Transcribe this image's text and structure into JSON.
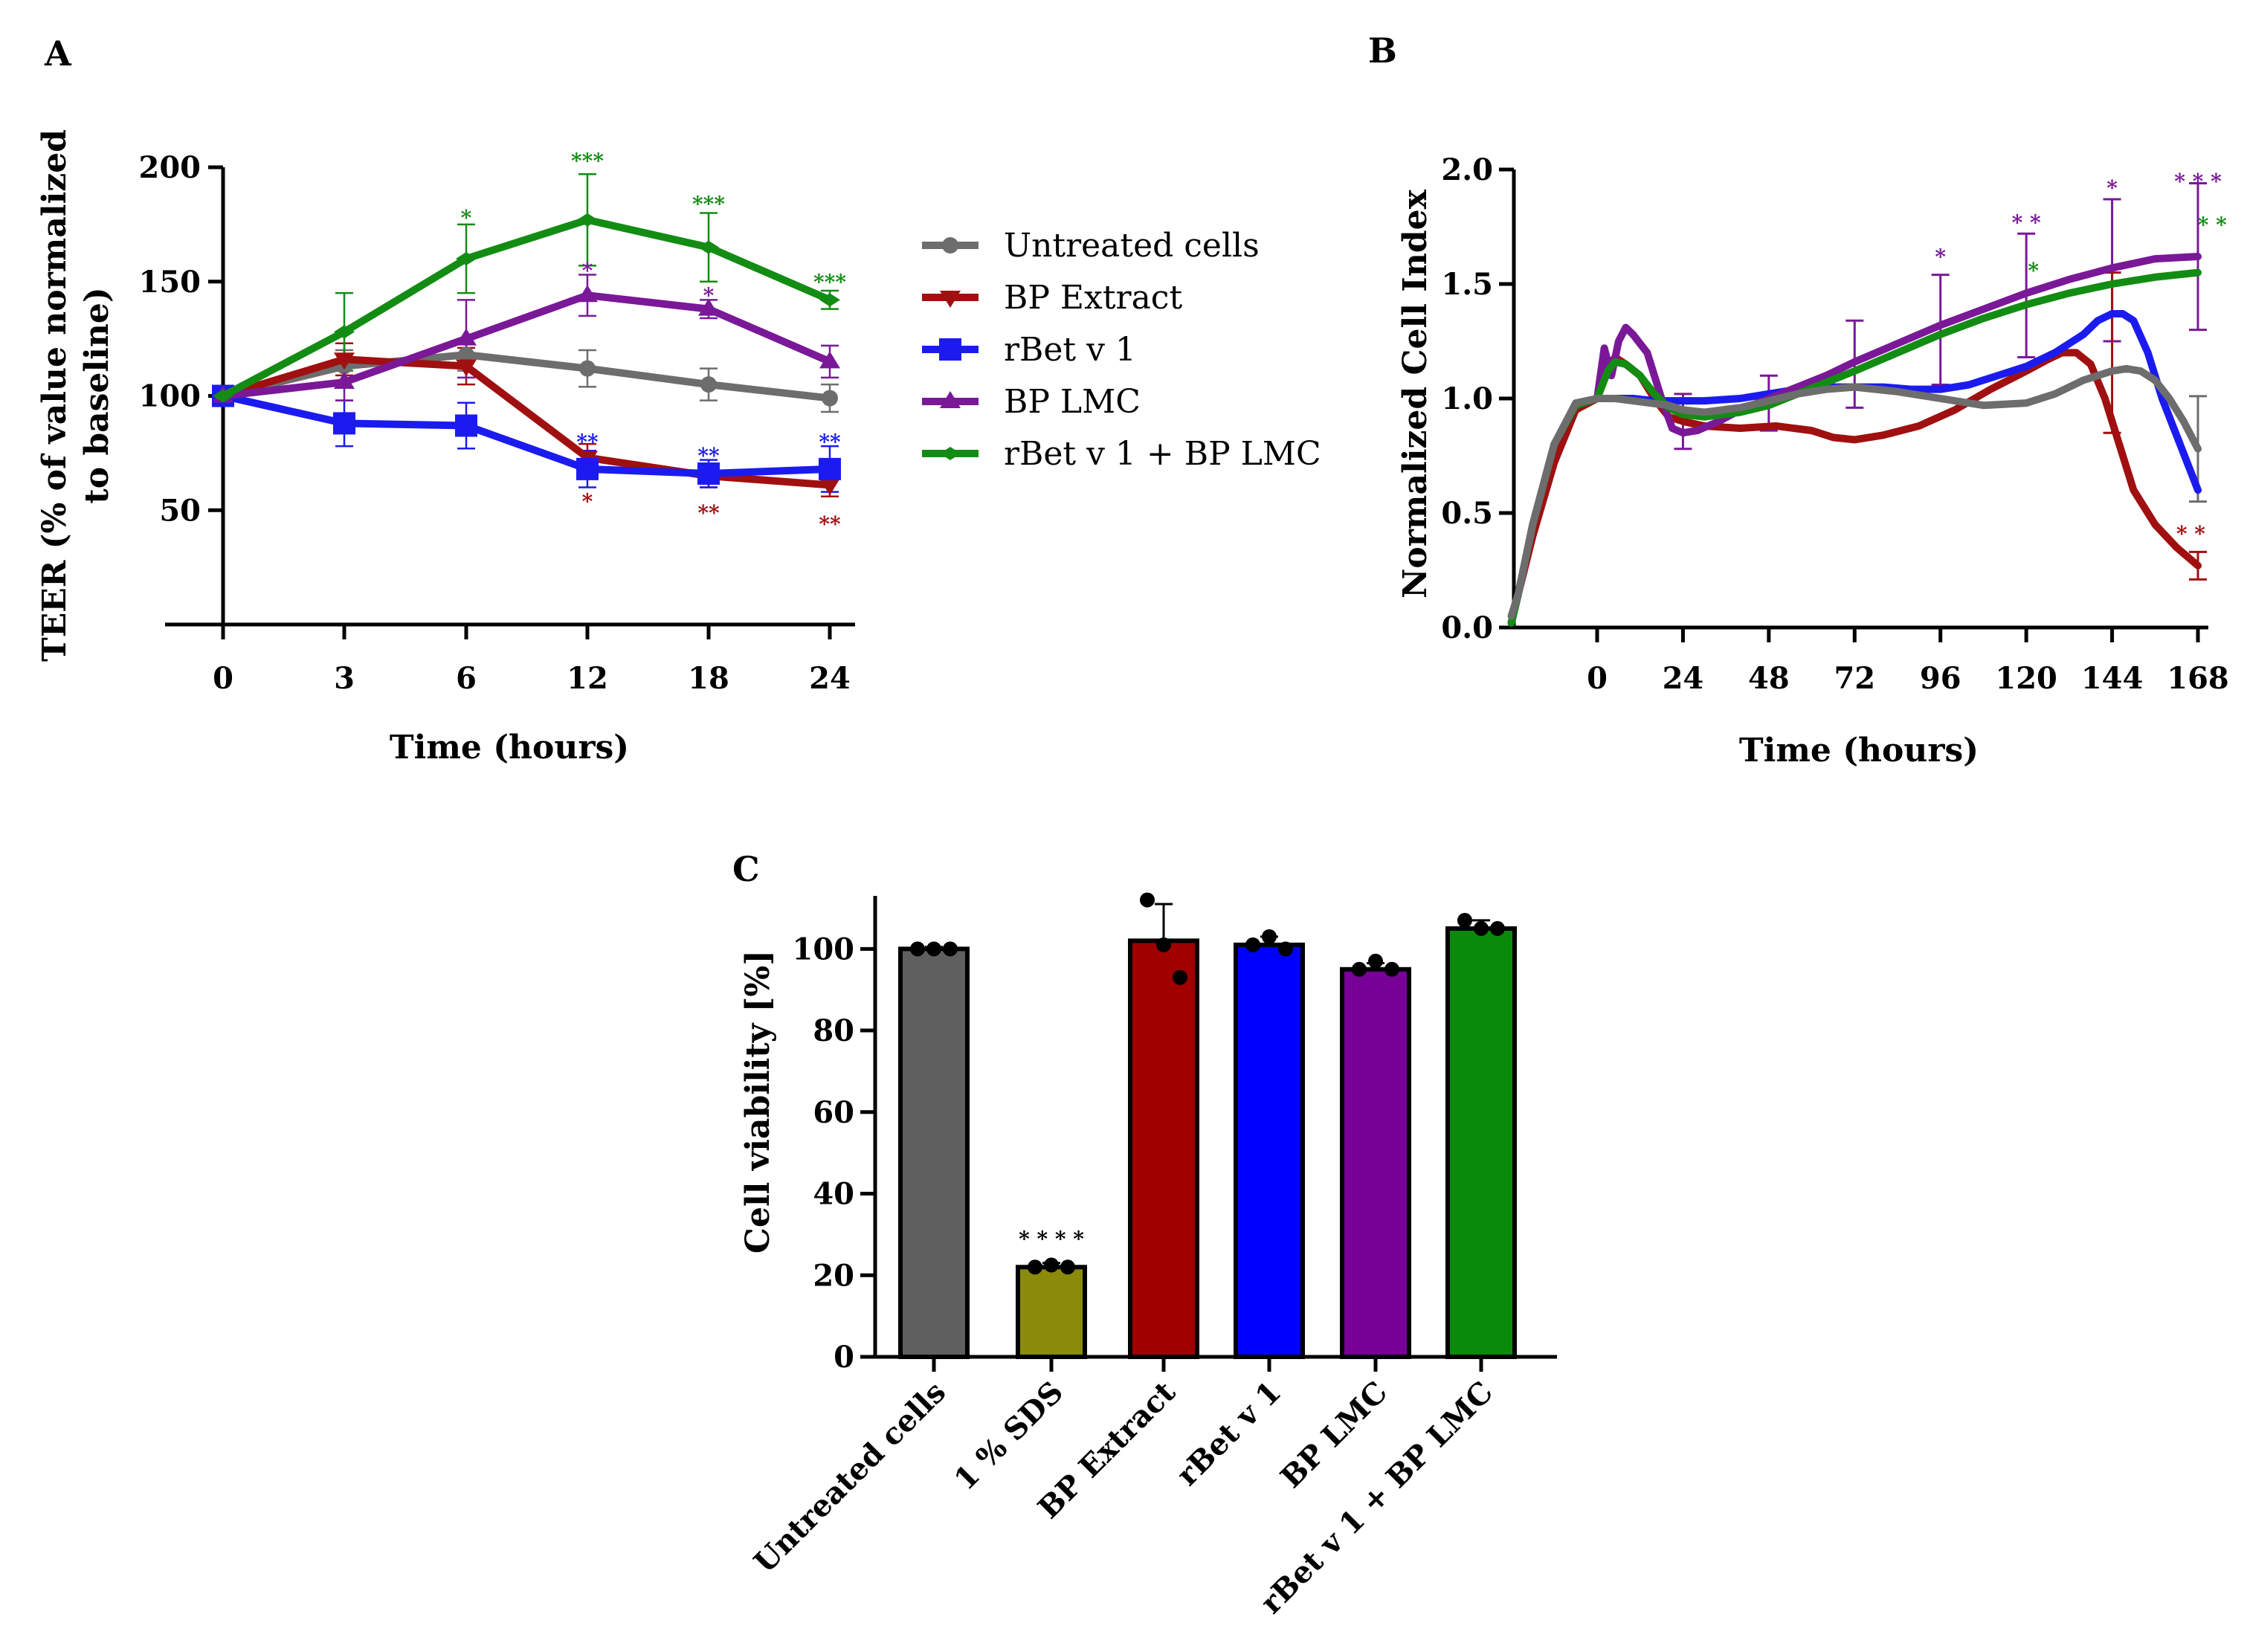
{
  "chart_data": [
    {
      "panel": "A",
      "type": "line",
      "xlabel": "Time (hours)",
      "ylabel": "TEER (% of value normalized to baseline)",
      "ylabel_lines": [
        "TEER (% of value normalized",
        "to baseline)"
      ],
      "categories": [
        "0",
        "3",
        "6",
        "12",
        "18",
        "24"
      ],
      "ylim": [
        0,
        200
      ],
      "yticks": [
        50,
        100,
        150,
        200
      ],
      "grid": false,
      "legend": "right",
      "series": [
        {
          "name": "Untreated cells",
          "color": "#6d6d6d",
          "marker": "circle",
          "values": [
            100,
            113,
            118,
            112,
            105,
            99
          ],
          "errors": [
            4,
            7,
            7,
            8,
            7,
            6
          ]
        },
        {
          "name": "BP Extract",
          "color": "#a01010",
          "marker": "triangle-down",
          "values": [
            100,
            116,
            113,
            73,
            65,
            61
          ],
          "errors": [
            4,
            7,
            8,
            6,
            5,
            5
          ]
        },
        {
          "name": "rBet v 1",
          "color": "#1b1bf0",
          "marker": "square",
          "values": [
            100,
            88,
            87,
            68,
            66,
            68
          ],
          "errors": [
            4,
            10,
            10,
            8,
            6,
            10
          ]
        },
        {
          "name": "BP LMC",
          "color": "#7a1898",
          "marker": "triangle-up",
          "values": [
            100,
            106,
            125,
            144,
            138,
            115
          ],
          "errors": [
            4,
            8,
            17,
            9,
            4,
            7
          ]
        },
        {
          "name": "rBet v 1 + BP LMC",
          "color": "#138c13",
          "marker": "diamond",
          "values": [
            100,
            128,
            160,
            177,
            165,
            142
          ],
          "errors": [
            4,
            17,
            15,
            20,
            15,
            4
          ]
        }
      ],
      "annotations": [
        {
          "text": "*",
          "x": "6",
          "y": 178,
          "series": "rBet v 1 + BP LMC"
        },
        {
          "text": "***",
          "x": "12",
          "y": 203,
          "series": "rBet v 1 + BP LMC"
        },
        {
          "text": "***",
          "x": "18",
          "y": 184,
          "series": "rBet v 1 + BP LMC"
        },
        {
          "text": "***",
          "x": "24",
          "y": 150,
          "series": "rBet v 1 + BP LMC"
        },
        {
          "text": "*",
          "x": "12",
          "y": 155,
          "series": "BP LMC"
        },
        {
          "text": "*",
          "x": "18",
          "y": 144,
          "series": "BP LMC"
        },
        {
          "text": "**",
          "x": "12",
          "y": 80,
          "series": "rBet v 1"
        },
        {
          "text": "**",
          "x": "18",
          "y": 74,
          "series": "rBet v 1"
        },
        {
          "text": "**",
          "x": "24",
          "y": 80,
          "series": "rBet v 1"
        },
        {
          "text": "*",
          "x": "12",
          "y": 54,
          "series": "BP Extract"
        },
        {
          "text": "**",
          "x": "18",
          "y": 49,
          "series": "BP Extract"
        },
        {
          "text": "**",
          "x": "24",
          "y": 44,
          "series": "BP Extract"
        }
      ]
    },
    {
      "panel": "B",
      "type": "line",
      "xlabel": "Time (hours)",
      "ylabel": "Normalized Cell Index",
      "xticks": [
        0,
        24,
        48,
        72,
        96,
        120,
        144,
        168
      ],
      "xlim": [
        -24,
        170
      ],
      "ylim": [
        0,
        2
      ],
      "yticks": [
        0.0,
        0.5,
        1.0,
        1.5,
        2.0
      ],
      "ytick_labels": [
        "0.0",
        "0.5",
        "1.0",
        "1.5",
        "2.0"
      ],
      "grid": false,
      "series": [
        {
          "name": "BP Extract",
          "color": "#a01010",
          "x": [
            -24,
            -22,
            -18,
            -12,
            -6,
            0,
            2,
            5,
            8,
            12,
            16,
            20,
            24,
            30,
            40,
            50,
            60,
            66,
            72,
            80,
            90,
            100,
            110,
            120,
            126,
            130,
            134,
            138,
            142,
            146,
            150,
            156,
            162,
            168
          ],
          "y": [
            0.02,
            0.15,
            0.4,
            0.72,
            0.95,
            1.0,
            1.1,
            1.18,
            1.15,
            1.1,
            1.0,
            0.92,
            0.9,
            0.88,
            0.87,
            0.88,
            0.86,
            0.83,
            0.82,
            0.84,
            0.88,
            0.95,
            1.04,
            1.12,
            1.17,
            1.2,
            1.2,
            1.15,
            1.0,
            0.8,
            0.6,
            0.45,
            0.35,
            0.27
          ]
        },
        {
          "name": "rBet v 1",
          "color": "#1b1bf0",
          "x": [
            -24,
            -22,
            -18,
            -12,
            -6,
            0,
            5,
            10,
            16,
            20,
            24,
            30,
            40,
            48,
            56,
            64,
            72,
            80,
            88,
            96,
            104,
            112,
            120,
            128,
            136,
            140,
            144,
            147,
            150,
            154,
            158,
            163,
            168
          ],
          "y": [
            0.02,
            0.15,
            0.45,
            0.8,
            0.97,
            1.0,
            1.0,
            1.0,
            0.99,
            0.99,
            0.99,
            0.99,
            1.0,
            1.02,
            1.04,
            1.05,
            1.05,
            1.05,
            1.04,
            1.04,
            1.06,
            1.1,
            1.14,
            1.2,
            1.28,
            1.34,
            1.37,
            1.37,
            1.34,
            1.2,
            1.0,
            0.8,
            0.6
          ]
        },
        {
          "name": "BP LMC",
          "color": "#7a1898",
          "x": [
            -24,
            -22,
            -18,
            -12,
            -6,
            0,
            2,
            4,
            6,
            8,
            10,
            14,
            18,
            21,
            24,
            28,
            34,
            40,
            48,
            56,
            64,
            72,
            84,
            96,
            108,
            120,
            132,
            144,
            156,
            168
          ],
          "y": [
            0.02,
            0.15,
            0.45,
            0.8,
            0.97,
            1.0,
            1.22,
            1.1,
            1.25,
            1.31,
            1.28,
            1.2,
            1.0,
            0.87,
            0.85,
            0.86,
            0.9,
            0.95,
            1.0,
            1.05,
            1.1,
            1.16,
            1.24,
            1.32,
            1.39,
            1.46,
            1.52,
            1.57,
            1.61,
            1.62
          ]
        },
        {
          "name": "rBet v 1 + BP LMC",
          "color": "#138c13",
          "x": [
            -24,
            -22,
            -18,
            -12,
            -6,
            0,
            3,
            5,
            8,
            12,
            16,
            20,
            24,
            30,
            40,
            48,
            56,
            64,
            72,
            84,
            96,
            108,
            120,
            132,
            144,
            156,
            168
          ],
          "y": [
            0.02,
            0.15,
            0.45,
            0.8,
            0.97,
            1.0,
            1.12,
            1.16,
            1.15,
            1.1,
            1.02,
            0.96,
            0.93,
            0.92,
            0.94,
            0.97,
            1.02,
            1.07,
            1.12,
            1.2,
            1.28,
            1.35,
            1.41,
            1.46,
            1.5,
            1.53,
            1.55
          ]
        },
        {
          "name": "Untreated cells",
          "color": "#6d6d6d",
          "x": [
            -24,
            -22,
            -18,
            -12,
            -6,
            0,
            5,
            10,
            15,
            20,
            24,
            30,
            40,
            48,
            56,
            64,
            72,
            84,
            96,
            108,
            120,
            128,
            136,
            144,
            148,
            152,
            156,
            160,
            164,
            168
          ],
          "y": [
            0.05,
            0.15,
            0.45,
            0.8,
            0.98,
            1.0,
            1.0,
            0.99,
            0.98,
            0.97,
            0.95,
            0.94,
            0.96,
            0.99,
            1.02,
            1.04,
            1.05,
            1.03,
            1.0,
            0.97,
            0.98,
            1.02,
            1.08,
            1.12,
            1.13,
            1.12,
            1.08,
            1.0,
            0.9,
            0.78
          ]
        }
      ],
      "error_bars": [
        {
          "x": 24,
          "y": 0.9,
          "err": 0.12,
          "color": "#7a1898"
        },
        {
          "x": 48,
          "y": 0.98,
          "err": 0.12,
          "color": "#7a1898"
        },
        {
          "x": 72,
          "y": 1.15,
          "err": 0.19,
          "color": "#7a1898"
        },
        {
          "x": 96,
          "y": 1.3,
          "err": 0.24,
          "color": "#7a1898"
        },
        {
          "x": 120,
          "y": 1.45,
          "err": 0.27,
          "color": "#7a1898"
        },
        {
          "x": 144,
          "y": 1.56,
          "err": 0.31,
          "color": "#7a1898"
        },
        {
          "x": 168,
          "y": 1.62,
          "err": 0.32,
          "color": "#7a1898"
        },
        {
          "x": 144,
          "y": 1.2,
          "err": 0.35,
          "color": "#a01010"
        },
        {
          "x": 168,
          "y": 0.27,
          "err": 0.06,
          "color": "#a01010"
        },
        {
          "x": 168,
          "y": 0.78,
          "err": 0.23,
          "color": "#6d6d6d"
        }
      ],
      "annotations": [
        {
          "text": "*",
          "x": 96,
          "y": 1.62,
          "color": "#7a1898"
        },
        {
          "text": "* *",
          "x": 120,
          "y": 1.77,
          "color": "#7a1898"
        },
        {
          "text": "*",
          "x": 122,
          "y": 1.56,
          "color": "#138c13"
        },
        {
          "text": "*",
          "x": 144,
          "y": 1.92,
          "color": "#7a1898"
        },
        {
          "text": "* * *",
          "x": 168,
          "y": 1.95,
          "color": "#7a1898"
        },
        {
          "text": "* *",
          "x": 172,
          "y": 1.76,
          "color": "#138c13"
        },
        {
          "text": "* *",
          "x": 166,
          "y": 0.41,
          "color": "#a01010"
        }
      ]
    },
    {
      "panel": "C",
      "type": "bar",
      "ylabel": "Cell viability [%]",
      "categories": [
        "Untreated cells",
        "1 % SDS",
        "BP Extract",
        "rBet v 1",
        "BP LMC",
        "rBet v 1 + BP LMC"
      ],
      "values": [
        100,
        22,
        102,
        101,
        95,
        105
      ],
      "errors": [
        0.5,
        1,
        9,
        2,
        1.5,
        2
      ],
      "colors": [
        "#5f5f5f",
        "#8a8a0b",
        "#a00000",
        "#0000ff",
        "#780098",
        "#0a8a0a"
      ],
      "points": [
        [
          100,
          100,
          100
        ],
        [
          22,
          22.5,
          22
        ],
        [
          112,
          101,
          93
        ],
        [
          101,
          103,
          100
        ],
        [
          95,
          97,
          95
        ],
        [
          107,
          105,
          105
        ]
      ],
      "ylim": [
        0,
        113
      ],
      "yticks": [
        0,
        20,
        40,
        60,
        80,
        100
      ],
      "grid": false,
      "annotations": [
        {
          "text": "* * * *",
          "category": "1 % SDS",
          "y": 29
        }
      ]
    }
  ]
}
